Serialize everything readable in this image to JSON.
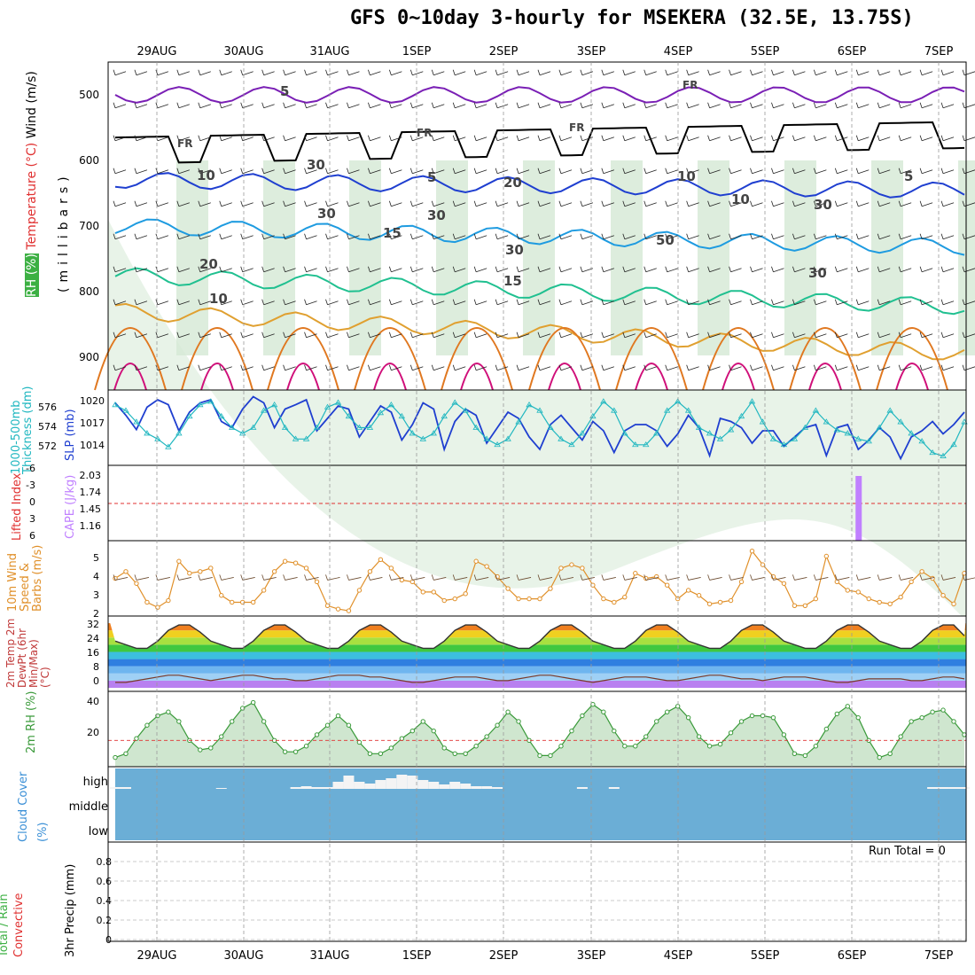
{
  "title": "GFS 0~10day 3-hourly for MSEKERA (32.5E, 13.75S)",
  "dates": [
    "29AUG",
    "30AUG",
    "31AUG",
    "1SEP",
    "2SEP",
    "3SEP",
    "4SEP",
    "5SEP",
    "6SEP",
    "7SEP"
  ],
  "run_total": "Run Total = 0",
  "colors": {
    "temp_lines": "#7a1fb5",
    "freezing": "#000000",
    "rh_fill": "#3cb043",
    "slp": "#1f3fd0",
    "thickness": "#20b7c0",
    "cape": "#c080ff",
    "lifted": "#e03030",
    "wind": "#e0902a",
    "rh2m": "#3a9a3a",
    "cloud": "#6baed6"
  },
  "chart_data": [
    {
      "type": "heatmap",
      "panel": "upper-air",
      "ylabel_parts": [
        "RH (%)",
        "Temperature (°C)",
        "Wind (m/s)"
      ],
      "ylabel2": "(millibars)",
      "yticks": [
        500,
        600,
        700,
        800,
        900
      ],
      "ylim": [
        450,
        950
      ],
      "contour_labels": [
        "5",
        "FR",
        "FR",
        "FR",
        "FR",
        "5",
        "5",
        "10",
        "15",
        "15",
        "20",
        "10",
        "30",
        "10",
        "30",
        "30",
        "30",
        "30",
        "50",
        "30",
        "10",
        "20"
      ]
    },
    {
      "type": "line",
      "panel": "thickness-slp",
      "ylabel_left": "1000-500mb Thickness (dm)",
      "ylabel_right": "SLP (mb)",
      "yticks_left": [
        "576",
        "574",
        "572"
      ],
      "yticks_right": [
        "1020",
        "1017",
        "1014"
      ],
      "series": [
        {
          "name": "SLP (mb)",
          "values": [
            1020.5,
            1018.5,
            1016.2,
            1019.8,
            1021.0,
            1020.2,
            1016.0,
            1019.0,
            1020.5,
            1021.0,
            1017.5,
            1016.5,
            1019.5,
            1021.5,
            1020.5,
            1016.5,
            1019.5,
            1020.2,
            1021.0,
            1016.0,
            1018.0,
            1020.0,
            1019.5,
            1015.0,
            1017.5,
            1020.0,
            1019.0,
            1014.5,
            1017.0,
            1020.5,
            1019.5,
            1013.0,
            1017.5,
            1019.5,
            1018.5,
            1014.0,
            1016.5,
            1019.0,
            1018.0,
            1015.0,
            1013.0,
            1017.0,
            1018.5,
            1016.5,
            1014.5,
            1017.5,
            1016.0,
            1012.5,
            1016.0,
            1017.0,
            1017.0,
            1016.0,
            1013.5,
            1015.5,
            1018.5,
            1016.5,
            1012.0,
            1018.0,
            1017.5,
            1016.5,
            1014.0,
            1016.0,
            1016.0,
            1013.5,
            1015.0,
            1016.5,
            1017.0,
            1012.0,
            1016.5,
            1017.0,
            1013.0,
            1014.5,
            1016.5,
            1015.0,
            1011.5,
            1015.0,
            1016.0,
            1017.5,
            1015.5,
            1017.0,
            1019.0
          ]
        },
        {
          "name": "1000-500mb Thickness (dm)",
          "values": [
            576.0,
            575.5,
            574.5,
            573.5,
            573.0,
            572.3,
            573.5,
            575.0,
            576.0,
            576.3,
            575.0,
            574.0,
            573.5,
            574.0,
            575.5,
            576.0,
            574.0,
            573.0,
            573.0,
            574.0,
            575.8,
            576.2,
            575.0,
            574.0,
            574.0,
            575.3,
            576.0,
            575.0,
            573.5,
            573.0,
            573.5,
            575.0,
            576.2,
            575.5,
            574.0,
            573.0,
            572.5,
            573.0,
            574.5,
            576.0,
            575.5,
            574.0,
            573.0,
            572.5,
            573.5,
            575.0,
            576.3,
            575.5,
            573.5,
            572.5,
            572.5,
            573.5,
            575.5,
            576.3,
            575.5,
            574.0,
            573.5,
            573.0,
            573.8,
            575.0,
            576.3,
            574.5,
            573.0,
            572.5,
            573.0,
            574.0,
            575.5,
            574.5,
            573.8,
            573.5,
            573.0,
            572.8,
            574.0,
            575.5,
            574.5,
            573.5,
            572.8,
            571.8,
            571.5,
            572.5,
            574.5
          ]
        }
      ]
    },
    {
      "type": "bar",
      "panel": "cape-lifted",
      "ylabel_left": "Lifted Index",
      "ylabel_right": "CAPE (J/kg)",
      "yticks_left": [
        "-6",
        "-3",
        "0",
        "3",
        "6"
      ],
      "yticks_right": [
        "2.03",
        "1.74",
        "1.45",
        "1.16"
      ],
      "series": [
        {
          "name": "CAPE (J/kg)",
          "x_index": 70,
          "value": 2.03
        }
      ]
    },
    {
      "type": "line",
      "panel": "wind10m",
      "ylabel": "10m Wind Speed & Barbs (m/s)",
      "ylim": [
        2,
        6
      ],
      "yticks": [
        "5",
        "4",
        "3",
        "2"
      ],
      "series": [
        {
          "name": "10m Wind Speed",
          "values": [
            4.0,
            4.4,
            3.7,
            2.6,
            2.3,
            2.7,
            5.0,
            4.3,
            4.4,
            4.6,
            3.0,
            2.6,
            2.6,
            2.6,
            3.3,
            4.4,
            5.0,
            4.9,
            4.6,
            3.8,
            2.4,
            2.2,
            2.1,
            3.3,
            4.4,
            5.1,
            4.6,
            3.9,
            3.8,
            3.2,
            3.2,
            2.7,
            2.8,
            3.1,
            5.0,
            4.7,
            4.1,
            3.4,
            2.8,
            2.8,
            2.8,
            3.4,
            4.6,
            4.8,
            4.6,
            3.6,
            2.8,
            2.6,
            2.9,
            4.3,
            4.0,
            4.1,
            3.6,
            2.8,
            3.3,
            3.0,
            2.5,
            2.6,
            2.7,
            3.8,
            5.6,
            4.8,
            4.1,
            3.7,
            2.4,
            2.4,
            2.8,
            5.3,
            3.8,
            3.3,
            3.2,
            2.8,
            2.6,
            2.5,
            2.9,
            3.8,
            4.4,
            4.0,
            3.0,
            2.5,
            4.3
          ]
        }
      ]
    },
    {
      "type": "area",
      "panel": "temp2m",
      "ylabel": "2m Temp 2m DewPt (6hr Min/Max) (°C)",
      "ylim": [
        -4,
        34
      ],
      "yticks": [
        "32",
        "24",
        "16",
        "8",
        "0"
      ],
      "series": [
        {
          "name": "2m Temp",
          "values": [
            22,
            20,
            18,
            18,
            22,
            28,
            31,
            31,
            27,
            22,
            20,
            18,
            18,
            22,
            28,
            31,
            31,
            27,
            22,
            20,
            18,
            18,
            22,
            28,
            31,
            31,
            27,
            22,
            20,
            18,
            18,
            22,
            28,
            31,
            31,
            27,
            22,
            20,
            18,
            18,
            22,
            28,
            31,
            31,
            27,
            22,
            20,
            18,
            18,
            22,
            28,
            31,
            31,
            27,
            22,
            20,
            18,
            18,
            22,
            28,
            31,
            31,
            27,
            22,
            20,
            18,
            18,
            22,
            28,
            31,
            31,
            27,
            22,
            20,
            18,
            18,
            22,
            28,
            31,
            31,
            25
          ]
        },
        {
          "name": "2m DewPt",
          "values": [
            -1,
            -1,
            0,
            1,
            2,
            3,
            3,
            2,
            1,
            0,
            1,
            2,
            3,
            3,
            2,
            1,
            1,
            0,
            0,
            1,
            2,
            3,
            3,
            3,
            2,
            2,
            1,
            0,
            -1,
            -1,
            0,
            1,
            2,
            2,
            2,
            1,
            0,
            0,
            1,
            2,
            3,
            3,
            2,
            1,
            0,
            -1,
            0,
            1,
            2,
            2,
            2,
            1,
            0,
            0,
            1,
            2,
            3,
            3,
            2,
            1,
            1,
            0,
            1,
            2,
            2,
            2,
            1,
            0,
            -1,
            -1,
            0,
            1,
            1,
            1,
            1,
            0,
            0,
            1,
            2,
            2,
            1
          ]
        }
      ]
    },
    {
      "type": "area",
      "panel": "rh2m",
      "ylabel": "2m RH (%)",
      "ylim": [
        8,
        44
      ],
      "yticks": [
        "40",
        "20"
      ],
      "series": [
        {
          "name": "2m RH",
          "values": [
            11,
            13,
            21,
            28,
            33,
            35,
            30,
            20,
            15,
            16,
            22,
            30,
            37,
            40,
            30,
            20,
            14,
            14,
            17,
            23,
            28,
            33,
            28,
            19,
            13,
            13,
            16,
            21,
            25,
            30,
            25,
            16,
            13,
            13,
            17,
            22,
            28,
            35,
            30,
            20,
            12,
            12,
            17,
            25,
            33,
            39,
            35,
            25,
            17,
            17,
            22,
            30,
            35,
            38,
            32,
            22,
            17,
            18,
            24,
            30,
            33,
            33,
            32,
            23,
            13,
            12,
            17,
            26,
            34,
            38,
            32,
            20,
            11,
            13,
            22,
            30,
            32,
            35,
            36,
            30,
            23
          ]
        }
      ]
    },
    {
      "type": "bar",
      "panel": "cloud-cover",
      "ylabel": "Cloud Cover (%)",
      "yticks": [
        "high",
        "middle",
        "low"
      ],
      "series": [
        {
          "name": "high",
          "values": [
            2,
            2,
            0,
            0,
            0,
            0,
            0,
            0,
            0,
            0,
            1,
            0,
            0,
            0,
            0,
            0,
            0,
            2,
            3,
            2,
            2,
            8,
            15,
            8,
            6,
            10,
            12,
            16,
            15,
            10,
            8,
            5,
            8,
            6,
            3,
            3,
            2,
            0,
            0,
            0,
            0,
            0,
            0,
            0,
            2,
            0,
            0,
            2,
            0,
            0,
            0,
            0,
            0,
            0,
            0,
            0,
            0,
            0,
            0,
            0,
            0,
            0,
            0,
            0,
            0,
            0,
            0,
            0,
            0,
            0,
            0,
            0,
            0,
            0,
            0,
            0,
            0,
            2,
            2,
            2,
            2
          ]
        },
        {
          "name": "middle",
          "values": [
            0,
            0,
            0,
            0,
            0,
            0,
            0,
            0,
            0,
            0,
            0,
            0,
            0,
            0,
            0,
            0,
            0,
            0,
            0,
            0,
            0,
            0,
            0,
            0,
            0,
            0,
            0,
            0,
            0,
            0,
            0,
            0,
            0,
            0,
            0,
            0,
            0,
            0,
            0,
            0,
            0,
            0,
            0,
            0,
            0,
            0,
            0,
            0,
            0,
            0,
            0,
            0,
            0,
            0,
            0,
            0,
            0,
            0,
            0,
            0,
            0,
            0,
            0,
            0,
            0,
            0,
            0,
            0,
            0,
            0,
            0,
            0,
            0,
            0,
            0,
            0,
            0,
            0,
            0,
            0,
            0
          ]
        }
      ]
    },
    {
      "type": "bar",
      "panel": "precip",
      "ylabel_parts": [
        "Total / Rain",
        "Convective"
      ],
      "ylabel": "3hr Precip (mm)",
      "ylim": [
        0,
        1
      ],
      "yticks": [
        "0.8",
        "0.6",
        "0.4",
        "0.2",
        "0"
      ],
      "series": [
        {
          "name": "3hr Precip",
          "values": [
            0,
            0,
            0,
            0,
            0,
            0,
            0,
            0,
            0,
            0,
            0,
            0,
            0,
            0,
            0,
            0,
            0,
            0,
            0,
            0,
            0,
            0,
            0,
            0,
            0,
            0,
            0,
            0,
            0,
            0,
            0,
            0,
            0,
            0,
            0,
            0,
            0,
            0,
            0,
            0,
            0,
            0,
            0,
            0,
            0,
            0,
            0,
            0,
            0,
            0,
            0,
            0,
            0,
            0,
            0,
            0,
            0,
            0,
            0,
            0,
            0,
            0,
            0,
            0,
            0,
            0,
            0,
            0,
            0,
            0,
            0,
            0,
            0,
            0,
            0,
            0,
            0,
            0,
            0,
            0,
            0
          ]
        }
      ]
    }
  ]
}
